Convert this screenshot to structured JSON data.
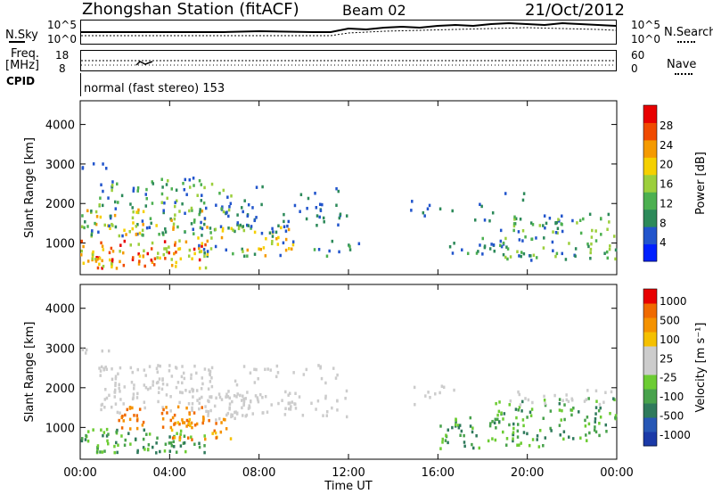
{
  "header": {
    "station": "Zhongshan Station (fitACF)",
    "beam": "Beam 02",
    "date": "21/Oct/2012"
  },
  "noise_panel": {
    "left_label": "N.Sky",
    "right_label": "N.Search",
    "y_ticks_left": [
      "10^5",
      "10^0"
    ],
    "y_ticks_right": [
      "10^5",
      "10^0"
    ]
  },
  "freq_panel": {
    "left_label_1": "Freq.",
    "left_label_2": "[MHz]",
    "right_label": "Nave",
    "y_ticks_left": [
      "18",
      "8"
    ],
    "y_ticks_right": [
      "60",
      "0"
    ]
  },
  "cpid": {
    "label": "CPID",
    "value": "normal (fast stereo) 153"
  },
  "chart_data": [
    {
      "type": "heatmap",
      "name": "power",
      "ylabel": "Slant Range [km]",
      "y_ticks": [
        1000,
        2000,
        3000,
        4000
      ],
      "ylim": [
        200,
        4600
      ],
      "colorbar": {
        "label": "Power [dB]",
        "ticks": [
          "4",
          "8",
          "12",
          "16",
          "20",
          "24",
          "28"
        ],
        "colors": [
          "#0020ff",
          "#2255cc",
          "#2d8a5a",
          "#4cb050",
          "#9ccf3c",
          "#f5d000",
          "#f59a00",
          "#f04a00",
          "#e80000"
        ]
      }
    },
    {
      "type": "heatmap",
      "name": "velocity",
      "ylabel": "Slant Range [km]",
      "y_ticks": [
        1000,
        2000,
        3000,
        4000
      ],
      "ylim": [
        200,
        4600
      ],
      "x_ticks": [
        "00:00",
        "04:00",
        "08:00",
        "12:00",
        "16:00",
        "20:00",
        "00:00"
      ],
      "xlabel": "Time UT",
      "colorbar": {
        "label": "Velocity [m s⁻¹]",
        "ticks": [
          "1000",
          "500",
          "100",
          "25",
          "-25",
          "-100",
          "-500",
          "-1000"
        ],
        "colors": [
          "#1b3aa8",
          "#2757b5",
          "#2f7a5c",
          "#48a24c",
          "#6ccc33",
          "#cccccc",
          "#cccccc",
          "#f5c000",
          "#f59200",
          "#f06a00",
          "#e80000"
        ]
      }
    }
  ]
}
